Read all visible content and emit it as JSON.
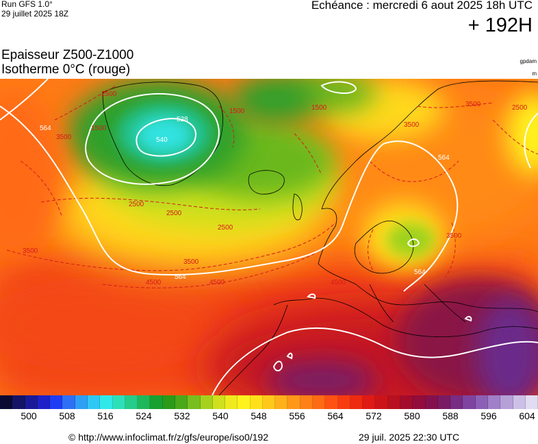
{
  "header": {
    "run": "Run GFS 1.0°",
    "run_date": "29 juillet 2025 18Z",
    "echeance": "Echéance : mercredi 6 aout 2025 18h UTC",
    "lead_time": "+ 192H"
  },
  "parameters": {
    "line1": "Epaisseur Z500-Z1000",
    "line2": "Isotherme 0°C (rouge)",
    "unit_thickness": "gpdam",
    "unit_isotherm": "m"
  },
  "map": {
    "thickness_contour_labels": [
      "528",
      "540",
      "564"
    ],
    "isotherm_labels": [
      "1500",
      "2500",
      "3500",
      "4500"
    ],
    "colors": {
      "isotherm_line": "#d41a1a",
      "thickness_line": "#ffffff",
      "coastline": "#000000"
    }
  },
  "colorbar": {
    "labels": [
      "500",
      "508",
      "516",
      "524",
      "532",
      "540",
      "548",
      "556",
      "564",
      "572",
      "580",
      "588",
      "596",
      "604"
    ],
    "colors": [
      "#0a0a33",
      "#141466",
      "#1a1a99",
      "#2020c8",
      "#1f3cf5",
      "#2f6ff5",
      "#2f9ff5",
      "#2fc8f5",
      "#30e8e8",
      "#2ee0b8",
      "#26cc8a",
      "#1eb85a",
      "#18a030",
      "#2a9a18",
      "#4aa81a",
      "#78be1e",
      "#a6d21e",
      "#cfe01e",
      "#eeea1e",
      "#fff21e",
      "#ffe01a",
      "#ffc81a",
      "#ffb01a",
      "#ff9818",
      "#ff8016",
      "#ff6a14",
      "#ff5212",
      "#f83c10",
      "#ee2a10",
      "#e01a14",
      "#cc1418",
      "#b81020",
      "#a40c2c",
      "#920c3c",
      "#84104e",
      "#7a1a64",
      "#782c82",
      "#7e44a0",
      "#8c60b6",
      "#a080c8",
      "#b6a0d8",
      "#ccc0e6",
      "#e2dcf2"
    ]
  },
  "footer": {
    "source_url": "© http://www.infoclimat.fr/z/gfs/europe/iso0/192",
    "generated": "29 juil. 2025 22:30 UTC"
  }
}
